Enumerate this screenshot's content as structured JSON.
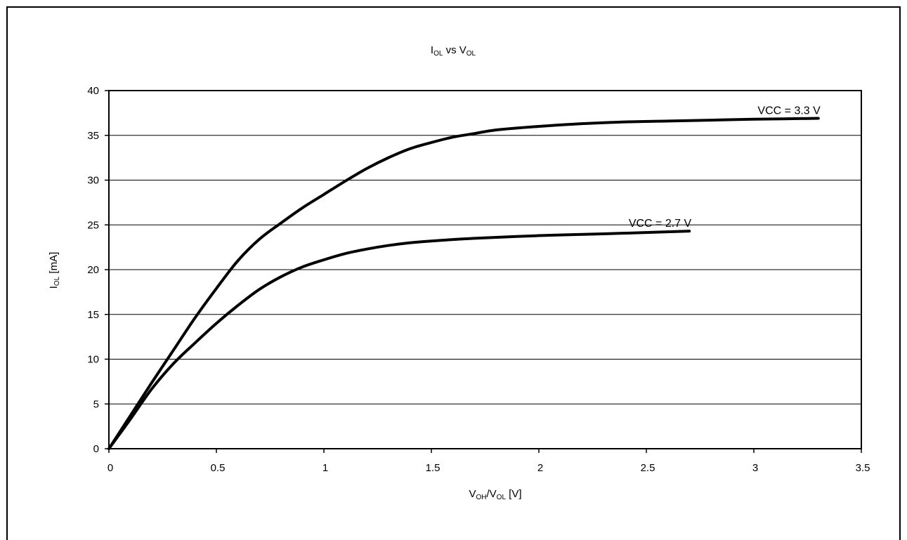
{
  "chart_data": {
    "type": "line",
    "title": {
      "main": "I",
      "sub": "OL",
      "mid": " vs V",
      "sub2": "OL"
    },
    "xlabel": {
      "a": "V",
      "a_sub": "OH",
      "b": "/V",
      "b_sub": "OL",
      "c": " [V]"
    },
    "ylabel": {
      "a": "I",
      "a_sub": "OL",
      "b": " [mA]"
    },
    "xlim": [
      0,
      3.5
    ],
    "ylim": [
      0,
      40
    ],
    "x_ticks": [
      0,
      0.5,
      1,
      1.5,
      2,
      2.5,
      3,
      3.5
    ],
    "x_tick_labels": [
      "0",
      "0.5",
      "1",
      "1.5",
      "2",
      "2.5",
      "3",
      "3.5"
    ],
    "y_ticks": [
      0,
      5,
      10,
      15,
      20,
      25,
      30,
      35,
      40
    ],
    "y_tick_labels": [
      "0",
      "5",
      "10",
      "15",
      "20",
      "25",
      "30",
      "35",
      "40"
    ],
    "grid": "horizontal",
    "series": [
      {
        "name": "VCC = 3.3 V",
        "color": "#000000",
        "x": [
          0,
          0.1,
          0.2,
          0.3,
          0.4,
          0.5,
          0.6,
          0.7,
          0.8,
          0.9,
          1.0,
          1.1,
          1.2,
          1.3,
          1.4,
          1.5,
          1.6,
          1.7,
          1.8,
          2.0,
          2.2,
          2.4,
          2.6,
          2.8,
          3.0,
          3.3
        ],
        "y": [
          0,
          3.7,
          7.4,
          11.0,
          14.6,
          17.9,
          21.0,
          23.4,
          25.2,
          26.9,
          28.4,
          29.9,
          31.3,
          32.5,
          33.5,
          34.2,
          34.8,
          35.2,
          35.6,
          36.0,
          36.3,
          36.5,
          36.6,
          36.7,
          36.8,
          36.9
        ]
      },
      {
        "name": "VCC = 2.7 V",
        "color": "#000000",
        "x": [
          0,
          0.1,
          0.2,
          0.3,
          0.4,
          0.5,
          0.6,
          0.7,
          0.8,
          0.9,
          1.0,
          1.1,
          1.2,
          1.3,
          1.4,
          1.5,
          1.7,
          2.0,
          2.3,
          2.7
        ],
        "y": [
          0,
          3.3,
          6.7,
          9.5,
          11.8,
          14.0,
          16.0,
          17.8,
          19.2,
          20.3,
          21.1,
          21.8,
          22.3,
          22.7,
          23.0,
          23.2,
          23.5,
          23.8,
          24.0,
          24.3
        ]
      }
    ]
  }
}
